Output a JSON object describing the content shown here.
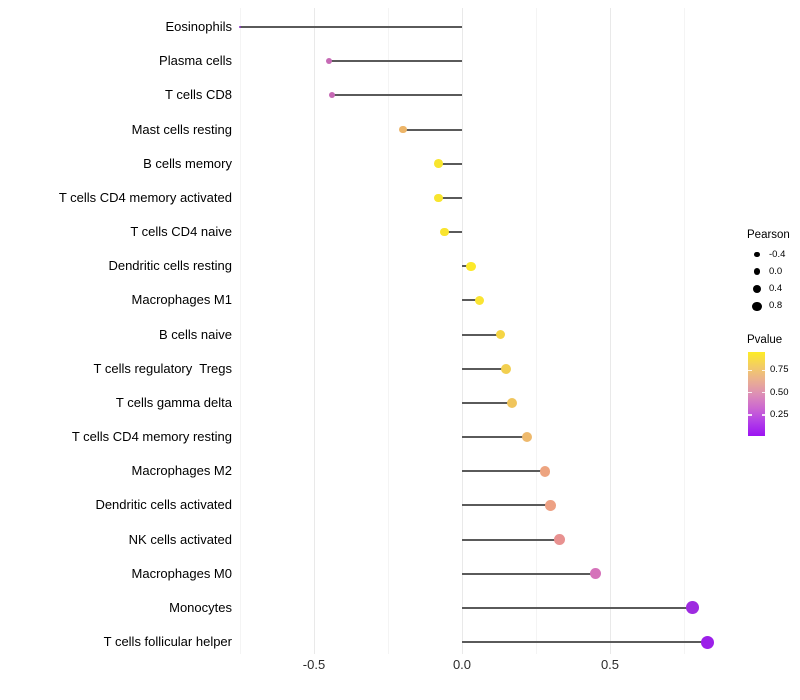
{
  "chart_data": {
    "type": "lollipop",
    "orientation": "horizontal",
    "title": "",
    "xlabel": "",
    "ylabel": "",
    "xlim": [
      -0.78,
      0.87
    ],
    "grid": "vertical only, major + minor",
    "x_major_ticks": [
      -0.5,
      0.0,
      0.5
    ],
    "x_tick_labels": [
      "-0.5",
      "0.0",
      "0.5"
    ],
    "x_minor_gridlines": [
      -0.75,
      -0.25,
      0.25,
      0.75
    ],
    "points": [
      {
        "category": "Eosinophils",
        "pearson": -0.75,
        "color": "#8c31c9"
      },
      {
        "category": "Plasma cells",
        "pearson": -0.45,
        "color": "#c66ab5"
      },
      {
        "category": "T cells CD8",
        "pearson": -0.44,
        "color": "#c668b4"
      },
      {
        "category": "Mast cells resting",
        "pearson": -0.2,
        "color": "#edb568"
      },
      {
        "category": "B cells memory",
        "pearson": -0.08,
        "color": "#f8e52e"
      },
      {
        "category": "T cells CD4 memory activated",
        "pearson": -0.08,
        "color": "#f8e52e"
      },
      {
        "category": "T cells CD4 naive",
        "pearson": -0.06,
        "color": "#f9e42f"
      },
      {
        "category": "Dendritic cells resting",
        "pearson": 0.03,
        "color": "#fce92a"
      },
      {
        "category": "Macrophages M1",
        "pearson": 0.06,
        "color": "#fae433"
      },
      {
        "category": "B cells naive",
        "pearson": 0.13,
        "color": "#f5d544"
      },
      {
        "category": "T cells regulatory  Tregs",
        "pearson": 0.15,
        "color": "#f2cf4f"
      },
      {
        "category": "T cells gamma delta",
        "pearson": 0.17,
        "color": "#f0c55c"
      },
      {
        "category": "T cells CD4 memory resting",
        "pearson": 0.22,
        "color": "#eeb96c"
      },
      {
        "category": "Macrophages M2",
        "pearson": 0.28,
        "color": "#eda480"
      },
      {
        "category": "Dendritic cells activated",
        "pearson": 0.3,
        "color": "#eda184"
      },
      {
        "category": "NK cells activated",
        "pearson": 0.33,
        "color": "#e89190"
      },
      {
        "category": "Macrophages M0",
        "pearson": 0.45,
        "color": "#d572ba"
      },
      {
        "category": "Monocytes",
        "pearson": 0.78,
        "color": "#9e2be0"
      },
      {
        "category": "T cells follicular helper",
        "pearson": 0.83,
        "color": "#9c20e9"
      }
    ],
    "legend_position": "right",
    "legend": {
      "size": {
        "title": "Pearson",
        "entries": [
          {
            "label": "-0.4",
            "value": -0.4
          },
          {
            "label": "0.0",
            "value": 0.0
          },
          {
            "label": "0.4",
            "value": 0.4
          },
          {
            "label": "0.8",
            "value": 0.8
          }
        ]
      },
      "color": {
        "title": "Pvalue",
        "tick_labels": [
          "0.75",
          "0.50",
          "0.25"
        ],
        "gradient_top_to_bottom": [
          "#fdec25",
          "#f3cd63",
          "#eab090",
          "#dd8fb5",
          "#cc68d0",
          "#b23ee8",
          "#9c13f2"
        ]
      }
    }
  }
}
